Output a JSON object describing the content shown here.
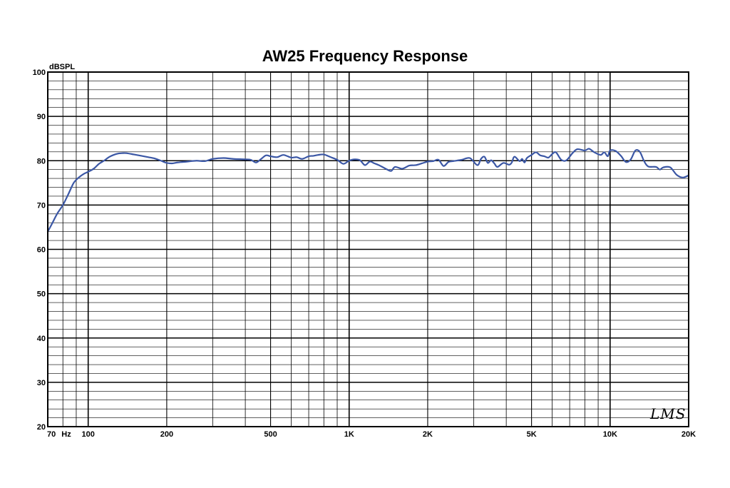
{
  "chart_data": {
    "type": "line",
    "title": "AW25 Frequency Response",
    "ylabel": "dBSPL",
    "xunit": "Hz",
    "xscale": "log",
    "xlim": [
      70,
      20000
    ],
    "ylim": [
      20,
      100
    ],
    "grid": true,
    "line_color": "#3b57a5",
    "x_tick_labels": [
      {
        "value": 70,
        "label": "70"
      },
      {
        "value": 100,
        "label": "100"
      },
      {
        "value": 200,
        "label": "200"
      },
      {
        "value": 500,
        "label": "500"
      },
      {
        "value": 1000,
        "label": "1K"
      },
      {
        "value": 2000,
        "label": "2K"
      },
      {
        "value": 5000,
        "label": "5K"
      },
      {
        "value": 10000,
        "label": "10K"
      },
      {
        "value": 20000,
        "label": "20K"
      }
    ],
    "y_tick_labels": [
      {
        "value": 100,
        "label": "100"
      },
      {
        "value": 90,
        "label": "90"
      },
      {
        "value": 80,
        "label": "80"
      },
      {
        "value": 70,
        "label": "70"
      },
      {
        "value": 60,
        "label": "60"
      },
      {
        "value": 50,
        "label": "50"
      },
      {
        "value": 40,
        "label": "40"
      },
      {
        "value": 30,
        "label": "30"
      },
      {
        "value": 20,
        "label": "20"
      }
    ],
    "series": [
      {
        "x": [
          70,
          73,
          76,
          80,
          84,
          88,
          92,
          96,
          100,
          105,
          110,
          115,
          120,
          125,
          130,
          135,
          140,
          150,
          160,
          170,
          180,
          190,
          200,
          210,
          220,
          240,
          260,
          280,
          300,
          330,
          360,
          400,
          420,
          440,
          460,
          480,
          500,
          530,
          560,
          600,
          630,
          660,
          700,
          730,
          760,
          800,
          850,
          900,
          950,
          1000,
          1050,
          1100,
          1150,
          1200,
          1250,
          1300,
          1350,
          1400,
          1450,
          1500,
          1600,
          1700,
          1800,
          1900,
          2000,
          2100,
          2200,
          2300,
          2400,
          2500,
          2700,
          2900,
          3100,
          3200,
          3300,
          3400,
          3500,
          3600,
          3700,
          3900,
          4100,
          4200,
          4300,
          4500,
          4600,
          4700,
          4800,
          5000,
          5200,
          5400,
          5600,
          5800,
          6000,
          6200,
          6500,
          6800,
          7200,
          7500,
          8000,
          8300,
          8700,
          9200,
          9500,
          9800,
          10000,
          10500,
          11000,
          11500,
          12000,
          12500,
          13000,
          13500,
          14000,
          15000,
          15500,
          16000,
          17000,
          18000,
          19000,
          20000
        ],
        "y": [
          64.0,
          66.0,
          68.0,
          70.0,
          72.5,
          75.0,
          76.2,
          77.0,
          77.5,
          78.2,
          79.3,
          80.0,
          80.8,
          81.3,
          81.6,
          81.7,
          81.7,
          81.4,
          81.1,
          80.8,
          80.5,
          80.0,
          79.5,
          79.4,
          79.6,
          79.8,
          80.0,
          79.9,
          80.4,
          80.6,
          80.4,
          80.3,
          80.2,
          79.6,
          80.4,
          81.2,
          81.0,
          80.8,
          81.3,
          80.7,
          80.8,
          80.4,
          81.0,
          81.1,
          81.3,
          81.4,
          80.8,
          80.2,
          79.3,
          80.0,
          80.3,
          80.1,
          79.0,
          79.8,
          79.4,
          79.0,
          78.5,
          78.0,
          77.7,
          78.6,
          78.2,
          78.9,
          79.0,
          79.4,
          79.8,
          79.9,
          80.2,
          78.8,
          79.7,
          79.9,
          80.2,
          80.6,
          79.0,
          80.4,
          80.9,
          79.5,
          80.1,
          79.4,
          78.6,
          79.5,
          79.1,
          79.6,
          80.9,
          79.9,
          80.4,
          79.6,
          80.6,
          81.3,
          81.9,
          81.2,
          81.0,
          80.7,
          81.5,
          81.9,
          80.2,
          80.1,
          81.8,
          82.6,
          82.3,
          82.7,
          81.9,
          81.3,
          81.9,
          81.0,
          82.3,
          82.2,
          81.1,
          79.7,
          80.3,
          82.3,
          82.0,
          79.9,
          78.7,
          78.6,
          78.0,
          78.5,
          78.5,
          76.8,
          76.2,
          76.7
        ]
      }
    ]
  },
  "logo": {
    "text": "LMS"
  }
}
